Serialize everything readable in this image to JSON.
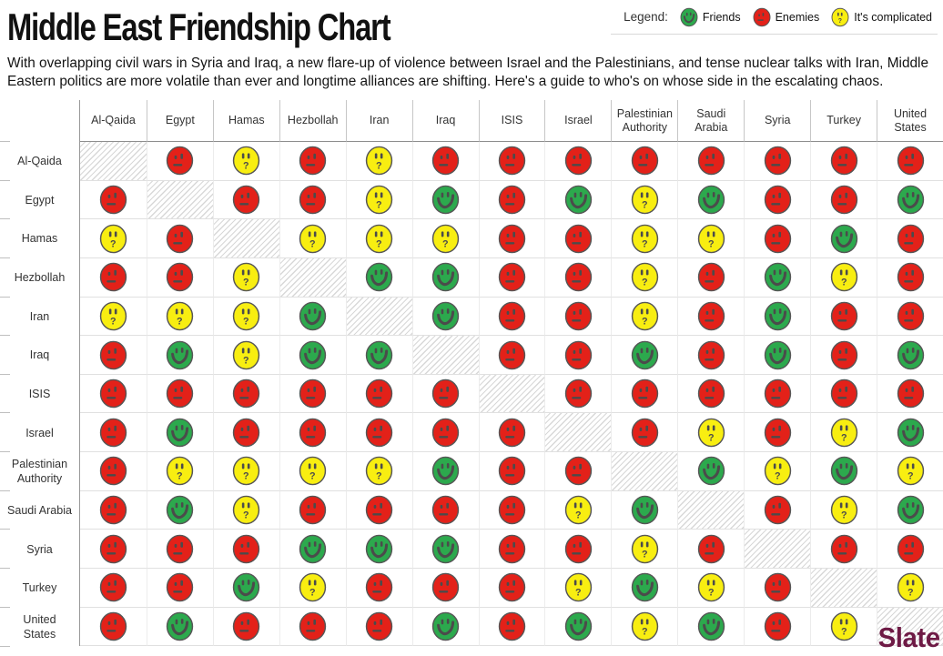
{
  "title": "Middle East Friendship Chart",
  "intro": "With overlapping civil wars in Syria and Iraq, a new flare-up of violence between Israel and the Palestinians, and tense nuclear talks with Iran, Middle Eastern politics are more volatile than ever and longtime alliances are shifting. Here's a guide to who's on whose side in the escalating chaos.",
  "legend": {
    "label": "Legend:",
    "items": [
      {
        "key": "F",
        "label": "Friends"
      },
      {
        "key": "E",
        "label": "Enemies"
      },
      {
        "key": "C",
        "label": "It's complicated"
      }
    ]
  },
  "colors": {
    "friends": "#2ca94d",
    "enemies": "#e32119",
    "complicated": "#f8ee11",
    "face_outline": "#4b4b4b",
    "face_ring": "#565656",
    "logo": "#6e1a45"
  },
  "logo": "Slate",
  "chart_data": {
    "type": "heatmap",
    "title": "Middle East Friendship Chart",
    "rows": [
      "Al-Qaida",
      "Egypt",
      "Hamas",
      "Hezbollah",
      "Iran",
      "Iraq",
      "ISIS",
      "Israel",
      "Palestinian Authority",
      "Saudi Arabia",
      "Syria",
      "Turkey",
      "United States"
    ],
    "columns": [
      "Al-Qaida",
      "Egypt",
      "Hamas",
      "Hezbollah",
      "Iran",
      "Iraq",
      "ISIS",
      "Israel",
      "Palestinian Authority",
      "Saudi Arabia",
      "Syria",
      "Turkey",
      "United States"
    ],
    "value_legend": {
      "F": "Friends",
      "E": "Enemies",
      "C": "It's complicated",
      "S": "self (hatched diagonal)"
    },
    "matrix": [
      [
        "S",
        "E",
        "C",
        "E",
        "C",
        "E",
        "E",
        "E",
        "E",
        "E",
        "E",
        "E",
        "E"
      ],
      [
        "E",
        "S",
        "E",
        "E",
        "C",
        "F",
        "E",
        "F",
        "C",
        "F",
        "E",
        "E",
        "F"
      ],
      [
        "C",
        "E",
        "S",
        "C",
        "C",
        "C",
        "E",
        "E",
        "C",
        "C",
        "E",
        "F",
        "E"
      ],
      [
        "E",
        "E",
        "C",
        "S",
        "F",
        "F",
        "E",
        "E",
        "C",
        "E",
        "F",
        "C",
        "E"
      ],
      [
        "C",
        "C",
        "C",
        "F",
        "S",
        "F",
        "E",
        "E",
        "C",
        "E",
        "F",
        "E",
        "E"
      ],
      [
        "E",
        "F",
        "C",
        "F",
        "F",
        "S",
        "E",
        "E",
        "F",
        "E",
        "F",
        "E",
        "F"
      ],
      [
        "E",
        "E",
        "E",
        "E",
        "E",
        "E",
        "S",
        "E",
        "E",
        "E",
        "E",
        "E",
        "E"
      ],
      [
        "E",
        "F",
        "E",
        "E",
        "E",
        "E",
        "E",
        "S",
        "E",
        "C",
        "E",
        "C",
        "F"
      ],
      [
        "E",
        "C",
        "C",
        "C",
        "C",
        "F",
        "E",
        "E",
        "S",
        "F",
        "C",
        "F",
        "C"
      ],
      [
        "E",
        "F",
        "C",
        "E",
        "E",
        "E",
        "E",
        "C",
        "F",
        "S",
        "E",
        "C",
        "F"
      ],
      [
        "E",
        "E",
        "E",
        "F",
        "F",
        "F",
        "E",
        "E",
        "C",
        "E",
        "S",
        "E",
        "E"
      ],
      [
        "E",
        "E",
        "F",
        "C",
        "E",
        "E",
        "E",
        "C",
        "F",
        "C",
        "E",
        "S",
        "C"
      ],
      [
        "E",
        "F",
        "E",
        "E",
        "E",
        "F",
        "E",
        "F",
        "C",
        "F",
        "E",
        "C",
        "S"
      ]
    ]
  }
}
